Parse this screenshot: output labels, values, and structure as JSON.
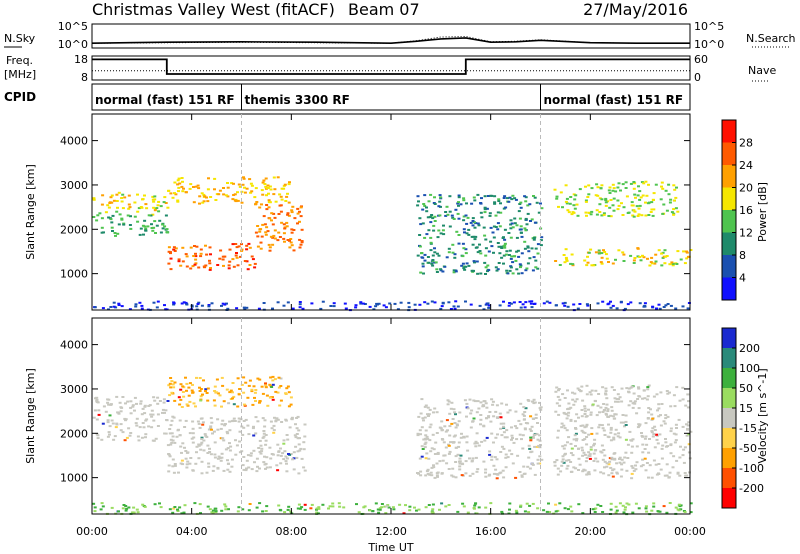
{
  "header": {
    "title": "Christmas Valley West (fitACF)",
    "beam": "Beam 07",
    "date": "27/May/2016"
  },
  "strip_panels": {
    "nsky_label": "N.Sky",
    "nsky_ticks": [
      "10^5",
      "10^0"
    ],
    "nsearch_label": "N.Search",
    "nsearch_ticks": [
      "10^5",
      "10^0"
    ],
    "freq_label": "Freq.",
    "freq_unit": "[MHz]",
    "freq_ticks": [
      "18",
      "8"
    ],
    "nave_label": "Nave",
    "nave_ticks": [
      "60",
      "0"
    ],
    "cpid_label": "CPID"
  },
  "cpid_segments": [
    {
      "label": "normal (fast) 151 RF",
      "start_h": 0,
      "end_h": 6
    },
    {
      "label": "themis 3300 RF",
      "start_h": 6,
      "end_h": 18
    },
    {
      "label": "normal (fast) 151 RF",
      "start_h": 18,
      "end_h": 24
    }
  ],
  "chart_data": [
    {
      "type": "line",
      "name": "nsky_nsearch",
      "xlim": [
        0,
        24
      ],
      "ylim_log10": [
        0,
        5
      ],
      "series": [
        {
          "style": "solid",
          "x": [
            0,
            3,
            6,
            9,
            12,
            13,
            14,
            15,
            16,
            17,
            18,
            20,
            22,
            24
          ],
          "y_log10": [
            1.0,
            1.2,
            1.3,
            1.2,
            1.0,
            1.4,
            1.9,
            2.1,
            1.2,
            1.3,
            1.6,
            1.1,
            1.0,
            1.0
          ]
        },
        {
          "style": "dotted",
          "x": [
            0,
            3,
            6,
            9,
            12,
            13,
            14,
            15,
            16,
            17,
            18,
            20,
            22,
            24
          ],
          "y_log10": [
            1.0,
            1.1,
            1.2,
            1.1,
            1.0,
            1.5,
            2.3,
            2.4,
            1.3,
            1.4,
            1.7,
            1.1,
            1.0,
            1.0
          ]
        }
      ]
    },
    {
      "type": "line",
      "name": "freq_nave",
      "xlim": [
        0,
        24
      ],
      "freq_ylim": [
        8,
        18
      ],
      "nave_ylim": [
        0,
        60
      ],
      "series": [
        {
          "style": "solid",
          "unit": "MHz",
          "x": [
            0,
            3,
            3,
            15,
            15,
            24
          ],
          "y": [
            16.6,
            16.6,
            10.5,
            10.5,
            16.6,
            16.6
          ]
        },
        {
          "style": "dotted",
          "unit": "Nave",
          "x": [
            0,
            24
          ],
          "y": [
            23,
            23
          ]
        }
      ]
    },
    {
      "type": "scatter",
      "name": "power",
      "xlabel": "",
      "ylabel": "Slant Range [km]",
      "xlim": [
        0,
        24
      ],
      "ylim": [
        180,
        4600
      ],
      "yticks": [
        1000,
        2000,
        3000,
        4000
      ],
      "colorbar": {
        "label": "Power [dB]",
        "ticks": [
          "28",
          "24",
          "20",
          "16",
          "12",
          "8",
          "4"
        ],
        "colors": [
          "#ff1000",
          "#ff5a00",
          "#ffa000",
          "#f5e600",
          "#4fc44f",
          "#1e8a6a",
          "#1a50b0",
          "#1010ff"
        ]
      },
      "regions": [
        {
          "x": [
            0.0,
            3.0
          ],
          "y": [
            2350,
            2850
          ],
          "value_db": 20
        },
        {
          "x": [
            0.0,
            3.0
          ],
          "y": [
            1850,
            2350
          ],
          "value_db": 14
        },
        {
          "x": [
            3.0,
            6.5
          ],
          "y": [
            1100,
            1700
          ],
          "value_db": 28
        },
        {
          "x": [
            6.5,
            8.5
          ],
          "y": [
            1500,
            2600
          ],
          "value_db": 26
        },
        {
          "x": [
            3.0,
            8.0
          ],
          "y": [
            2600,
            3200
          ],
          "value_db": 22
        },
        {
          "x": [
            13.0,
            18.0
          ],
          "y": [
            1000,
            2800
          ],
          "value_db": 12
        },
        {
          "x": [
            18.5,
            24.0
          ],
          "y": [
            1200,
            1600
          ],
          "value_db": 20
        },
        {
          "x": [
            18.5,
            23.5
          ],
          "y": [
            2300,
            3100
          ],
          "value_db": 18
        },
        {
          "x": [
            0.0,
            24.0
          ],
          "y": [
            200,
            400
          ],
          "value_db": 6
        }
      ]
    },
    {
      "type": "scatter",
      "name": "velocity",
      "xlabel": "Time UT",
      "ylabel": "Slant Range [km]",
      "xlim": [
        0,
        24
      ],
      "xticks": [
        "00:00",
        "04:00",
        "08:00",
        "12:00",
        "16:00",
        "20:00",
        "00:00"
      ],
      "ylim": [
        180,
        4600
      ],
      "yticks": [
        1000,
        2000,
        3000,
        4000
      ],
      "colorbar": {
        "label": "Velocity [m s^-1]",
        "ticks": [
          "200",
          "100",
          "50",
          "15",
          "-15",
          "-50",
          "-100",
          "-200"
        ],
        "colors": [
          "#1a2ad0",
          "#2a8a7a",
          "#3db03d",
          "#9adc60",
          "#c8c8c0",
          "#ffd24a",
          "#ffa000",
          "#ff5000",
          "#ff0000"
        ]
      },
      "regions": [
        {
          "x": [
            0.0,
            3.0
          ],
          "y": [
            1850,
            2850
          ],
          "value_ms": 0
        },
        {
          "x": [
            3.0,
            8.5
          ],
          "y": [
            1100,
            2400
          ],
          "value_ms": 0
        },
        {
          "x": [
            3.0,
            8.0
          ],
          "y": [
            2600,
            3300
          ],
          "value_ms": -60
        },
        {
          "x": [
            13.0,
            18.0
          ],
          "y": [
            1000,
            2800
          ],
          "value_ms": 0
        },
        {
          "x": [
            18.5,
            24.0
          ],
          "y": [
            1000,
            3100
          ],
          "value_ms": 0
        },
        {
          "x": [
            0.0,
            24.0
          ],
          "y": [
            200,
            450
          ],
          "value_ms": 40
        }
      ]
    }
  ]
}
